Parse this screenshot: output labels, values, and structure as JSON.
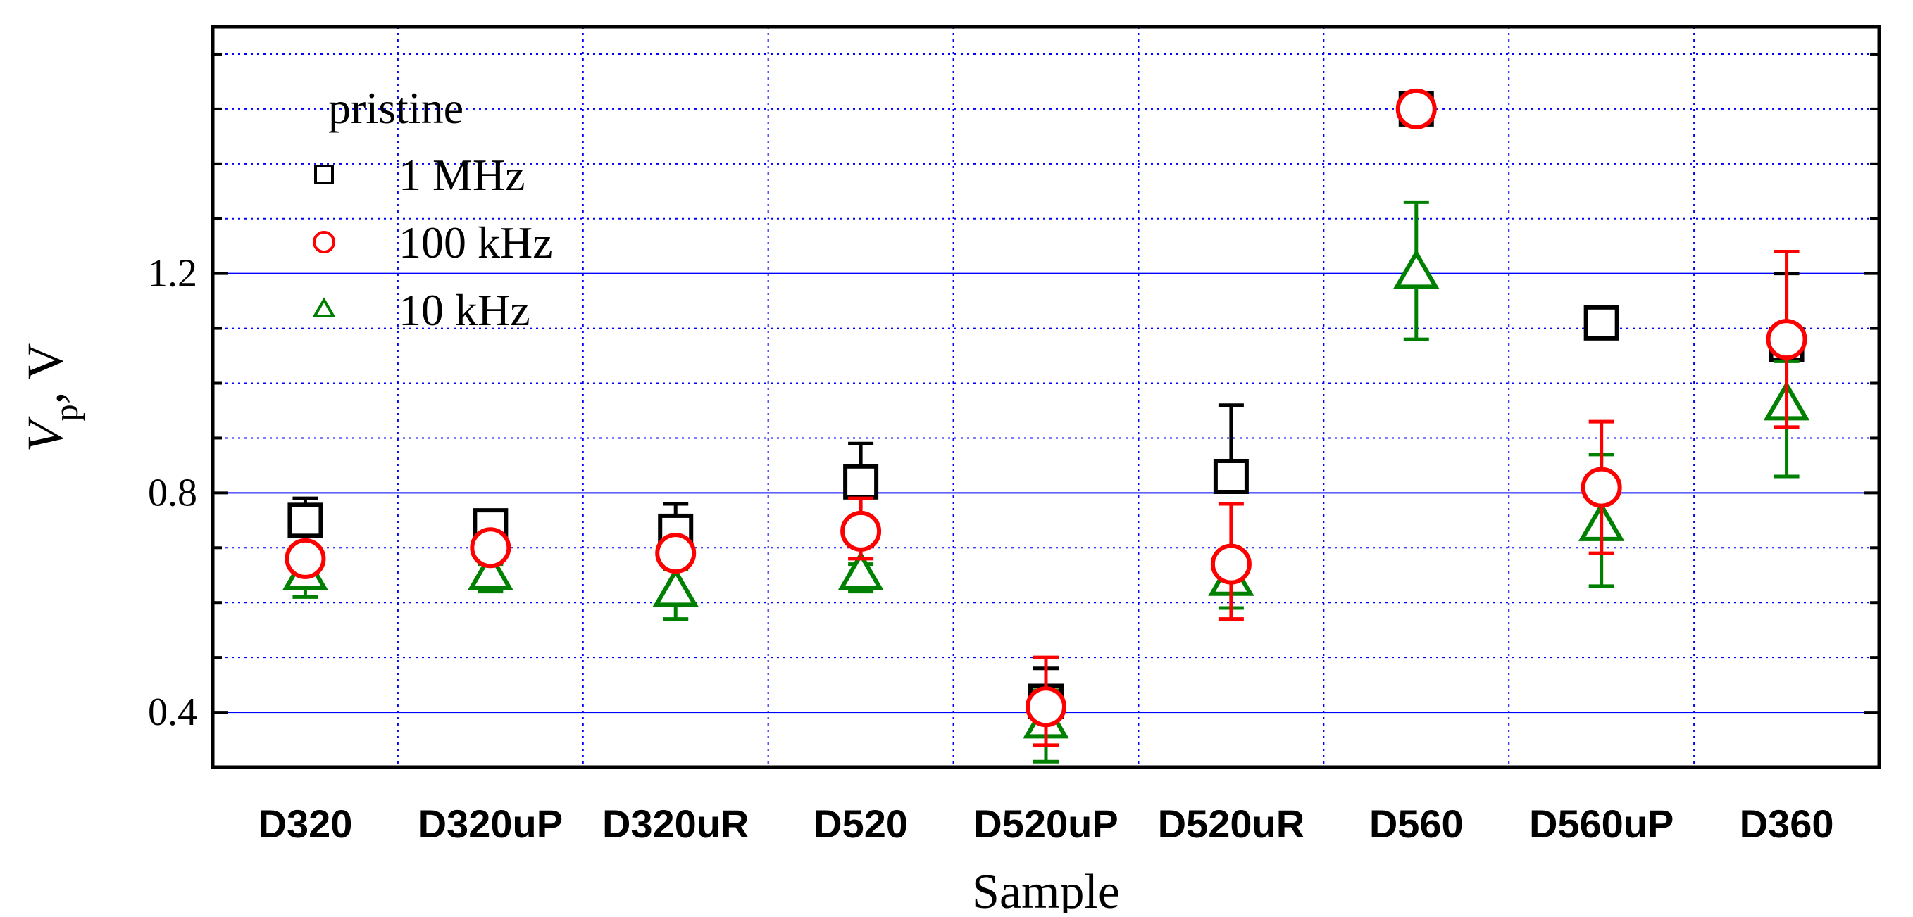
{
  "chart_data": {
    "type": "scatter",
    "title": "",
    "xlabel": "Sample",
    "ylabel_main": "V",
    "ylabel_sub": "p",
    "ylabel_unit": ", V",
    "categories": [
      "D320",
      "D320uP",
      "D320uR",
      "D520",
      "D520uP",
      "D520uR",
      "D560",
      "D560uP",
      "D360"
    ],
    "y_ticks": [
      0.4,
      0.8,
      1.2
    ],
    "ylim": [
      0.3,
      1.65
    ],
    "grid": true,
    "legend": {
      "title": "pristine",
      "position": "top-left"
    },
    "series": [
      {
        "name": "1 MHz",
        "marker": "square",
        "color": "#000000",
        "values": [
          0.75,
          0.74,
          0.73,
          0.82,
          0.42,
          0.83,
          1.5,
          1.11,
          1.07
        ],
        "err_high": [
          0.79,
          0.74,
          0.78,
          0.89,
          0.48,
          0.96,
          1.5,
          1.11,
          1.2
        ],
        "err_low": [
          0.75,
          0.74,
          0.73,
          0.79,
          0.4,
          0.83,
          1.5,
          1.11,
          1.07
        ]
      },
      {
        "name": "100 kHz",
        "marker": "circle",
        "color": "#ff0000",
        "values": [
          0.68,
          0.7,
          0.69,
          0.73,
          0.41,
          0.67,
          1.5,
          0.81,
          1.08
        ],
        "err_high": [
          0.7,
          0.71,
          0.7,
          0.79,
          0.5,
          0.78,
          1.5,
          0.93,
          1.24
        ],
        "err_low": [
          0.66,
          0.7,
          0.67,
          0.68,
          0.34,
          0.57,
          1.5,
          0.69,
          0.92
        ]
      },
      {
        "name": "10 kHz",
        "marker": "triangle",
        "color": "#008000",
        "values": [
          0.65,
          0.65,
          0.62,
          0.65,
          0.38,
          0.64,
          1.2,
          0.74,
          0.96
        ],
        "err_high": [
          0.67,
          0.67,
          0.66,
          0.67,
          0.44,
          0.66,
          1.33,
          0.87,
          1.04
        ],
        "err_low": [
          0.61,
          0.62,
          0.57,
          0.62,
          0.31,
          0.59,
          1.08,
          0.63,
          0.83
        ]
      }
    ],
    "colors": {
      "major_grid": "#0000ff",
      "minor_grid": "#0000ff",
      "axis": "#000000"
    }
  }
}
